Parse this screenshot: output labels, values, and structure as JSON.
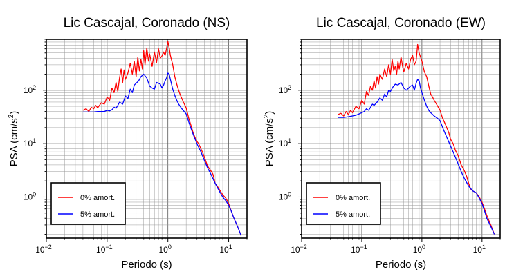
{
  "chart_data": [
    {
      "type": "line",
      "title": "Lic Cascajal, Coronado (NS)",
      "xlabel": "Periodo (s)",
      "ylabel_base": "PSA (cm/s",
      "ylabel_exp": "2",
      "ylabel_close": ")",
      "xscale": "log",
      "yscale": "log",
      "xlim": [
        0.01,
        20
      ],
      "ylim": [
        0.17,
        900
      ],
      "grid": true,
      "legend_position": "lower-left",
      "x_ticks": [
        {
          "value": 0.01,
          "base": "10",
          "exp": "−2"
        },
        {
          "value": 0.1,
          "base": "10",
          "exp": "−1"
        },
        {
          "value": 1,
          "base": "10",
          "exp": "0"
        },
        {
          "value": 10,
          "base": "10",
          "exp": "1"
        }
      ],
      "y_ticks": [
        {
          "value": 1,
          "base": "10",
          "exp": "0"
        },
        {
          "value": 10,
          "base": "10",
          "exp": "1"
        },
        {
          "value": 100,
          "base": "10",
          "exp": "2"
        }
      ],
      "series": [
        {
          "name": "0% amort.",
          "color": "#ff0000",
          "x": [
            0.04,
            0.045,
            0.05,
            0.055,
            0.06,
            0.065,
            0.07,
            0.08,
            0.09,
            0.1,
            0.11,
            0.12,
            0.13,
            0.14,
            0.15,
            0.16,
            0.17,
            0.18,
            0.19,
            0.2,
            0.22,
            0.24,
            0.26,
            0.28,
            0.3,
            0.32,
            0.34,
            0.36,
            0.38,
            0.4,
            0.42,
            0.45,
            0.48,
            0.5,
            0.55,
            0.6,
            0.65,
            0.7,
            0.75,
            0.8,
            0.85,
            0.9,
            0.95,
            1.0,
            1.05,
            1.1,
            1.2,
            1.3,
            1.4,
            1.5,
            1.6,
            1.7,
            1.8,
            2.0,
            2.2,
            2.4,
            2.6,
            2.8,
            3.0,
            3.2,
            3.5,
            3.8,
            4.0,
            4.5,
            5.0,
            5.5,
            6.0,
            6.5,
            7.0,
            8.0,
            9.0,
            10.0,
            11.0,
            12.0,
            14.0,
            16.0
          ],
          "y": [
            42,
            45,
            40,
            48,
            45,
            52,
            47,
            58,
            55,
            75,
            65,
            110,
            90,
            140,
            95,
            170,
            250,
            140,
            240,
            160,
            210,
            320,
            200,
            350,
            180,
            420,
            230,
            380,
            250,
            550,
            300,
            620,
            350,
            480,
            280,
            520,
            330,
            600,
            400,
            440,
            520,
            450,
            600,
            820,
            620,
            450,
            300,
            180,
            130,
            100,
            82,
            70,
            60,
            47,
            30,
            22,
            16,
            13,
            11,
            10,
            8,
            6.5,
            5.5,
            3.8,
            3.2,
            2.7,
            1.8,
            1.6,
            1.4,
            1.1,
            0.95,
            0.75,
            0.55,
            0.42,
            0.28,
            0.19
          ]
        },
        {
          "name": "5% amort.",
          "color": "#0000ff",
          "x": [
            0.04,
            0.05,
            0.06,
            0.07,
            0.08,
            0.09,
            0.1,
            0.11,
            0.12,
            0.13,
            0.14,
            0.15,
            0.16,
            0.18,
            0.2,
            0.22,
            0.24,
            0.26,
            0.28,
            0.3,
            0.33,
            0.36,
            0.4,
            0.45,
            0.5,
            0.55,
            0.6,
            0.65,
            0.7,
            0.75,
            0.8,
            0.85,
            0.9,
            0.95,
            1.0,
            1.05,
            1.1,
            1.2,
            1.3,
            1.4,
            1.5,
            1.7,
            2.0,
            2.3,
            2.6,
            3.0,
            3.5,
            4.0,
            4.5,
            5.0,
            6.0,
            7.0,
            8.0,
            9.0,
            10.0,
            11.0,
            12.0,
            14.0,
            16.0
          ],
          "y": [
            39,
            39,
            39,
            40,
            40,
            40,
            42,
            41,
            43,
            48,
            46,
            52,
            60,
            55,
            78,
            70,
            105,
            90,
            125,
            135,
            150,
            180,
            200,
            170,
            120,
            110,
            105,
            140,
            135,
            130,
            110,
            125,
            150,
            170,
            210,
            200,
            160,
            105,
            80,
            65,
            55,
            45,
            36,
            22,
            15,
            10,
            7,
            4.8,
            3.5,
            2.8,
            1.8,
            1.3,
            1.0,
            0.85,
            0.7,
            0.55,
            0.42,
            0.28,
            0.19
          ]
        }
      ]
    },
    {
      "type": "line",
      "title": "Lic Cascajal, Coronado (EW)",
      "xlabel": "Periodo (s)",
      "ylabel_base": "PSA (cm/s",
      "ylabel_exp": "2",
      "ylabel_close": ")",
      "xscale": "log",
      "yscale": "log",
      "xlim": [
        0.01,
        20
      ],
      "ylim": [
        0.17,
        900
      ],
      "grid": true,
      "legend_position": "lower-left",
      "x_ticks": [
        {
          "value": 0.01,
          "base": "10",
          "exp": "−2"
        },
        {
          "value": 0.1,
          "base": "10",
          "exp": "−1"
        },
        {
          "value": 1,
          "base": "10",
          "exp": "0"
        },
        {
          "value": 10,
          "base": "10",
          "exp": "1"
        }
      ],
      "y_ticks": [
        {
          "value": 1,
          "base": "10",
          "exp": "0"
        },
        {
          "value": 10,
          "base": "10",
          "exp": "1"
        },
        {
          "value": 100,
          "base": "10",
          "exp": "2"
        }
      ],
      "series": [
        {
          "name": "0% amort.",
          "color": "#ff0000",
          "x": [
            0.04,
            0.045,
            0.05,
            0.055,
            0.06,
            0.065,
            0.07,
            0.08,
            0.09,
            0.1,
            0.11,
            0.12,
            0.13,
            0.14,
            0.15,
            0.16,
            0.17,
            0.18,
            0.19,
            0.2,
            0.22,
            0.24,
            0.26,
            0.28,
            0.3,
            0.32,
            0.34,
            0.36,
            0.38,
            0.4,
            0.42,
            0.45,
            0.48,
            0.5,
            0.55,
            0.6,
            0.65,
            0.7,
            0.75,
            0.8,
            0.85,
            0.9,
            0.95,
            1.0,
            1.1,
            1.2,
            1.3,
            1.4,
            1.5,
            1.6,
            1.8,
            2.0,
            2.2,
            2.5,
            2.8,
            3.0,
            3.3,
            3.6,
            4.0,
            4.5,
            5.0,
            5.5,
            6.0,
            6.5,
            7.0,
            8.0,
            9.0,
            10.0,
            11.0,
            12.0,
            14.0,
            16.0
          ],
          "y": [
            35,
            37,
            33,
            40,
            35,
            42,
            38,
            50,
            45,
            65,
            55,
            95,
            80,
            120,
            100,
            150,
            110,
            180,
            130,
            200,
            160,
            250,
            180,
            300,
            200,
            380,
            230,
            280,
            200,
            350,
            250,
            420,
            270,
            220,
            320,
            250,
            380,
            450,
            300,
            350,
            720,
            500,
            420,
            350,
            220,
            180,
            120,
            85,
            75,
            65,
            52,
            42,
            30,
            22,
            16,
            12,
            10,
            7.5,
            6,
            4,
            3.2,
            2.5,
            1.8,
            1.4,
            1.3,
            1.2,
            1.0,
            0.8,
            0.6,
            0.45,
            0.3,
            0.2
          ]
        },
        {
          "name": "5% amort.",
          "color": "#0000ff",
          "x": [
            0.04,
            0.05,
            0.06,
            0.07,
            0.08,
            0.09,
            0.1,
            0.11,
            0.12,
            0.13,
            0.14,
            0.15,
            0.16,
            0.18,
            0.2,
            0.22,
            0.24,
            0.26,
            0.28,
            0.3,
            0.33,
            0.36,
            0.4,
            0.45,
            0.5,
            0.55,
            0.6,
            0.65,
            0.7,
            0.75,
            0.8,
            0.85,
            0.9,
            0.95,
            1.0,
            1.1,
            1.2,
            1.3,
            1.4,
            1.6,
            1.8,
            2.0,
            2.3,
            2.6,
            3.0,
            3.5,
            4.0,
            4.5,
            5.0,
            6.0,
            7.0,
            8.0,
            9.0,
            10.0,
            11.0,
            12.0,
            14.0,
            16.0
          ],
          "y": [
            31,
            31,
            32,
            33,
            34,
            36,
            38,
            40,
            45,
            42,
            48,
            55,
            52,
            60,
            72,
            65,
            85,
            75,
            100,
            95,
            115,
            130,
            125,
            140,
            110,
            100,
            110,
            120,
            125,
            100,
            135,
            160,
            150,
            110,
            90,
            65,
            50,
            42,
            38,
            33,
            30,
            27,
            18,
            13,
            9,
            6,
            4.2,
            3,
            2.3,
            1.6,
            1.3,
            1.2,
            0.95,
            0.75,
            0.55,
            0.4,
            0.28,
            0.2
          ]
        }
      ]
    }
  ]
}
